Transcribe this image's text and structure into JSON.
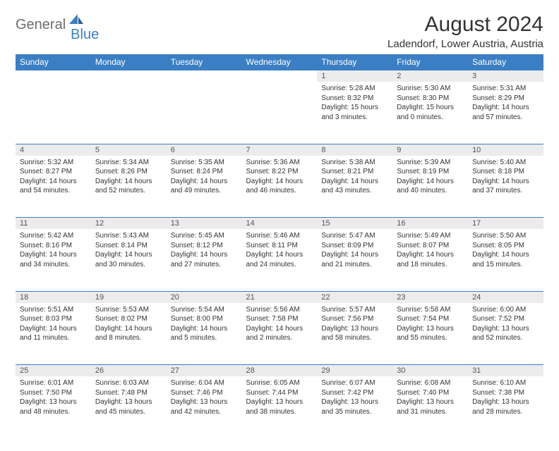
{
  "brand": {
    "part1": "General",
    "part2": "Blue"
  },
  "title": "August 2024",
  "location": "Ladendorf, Lower Austria, Austria",
  "colors": {
    "header_bg": "#3a7fc4",
    "header_text": "#ffffff",
    "daynum_bg": "#ececec",
    "border": "#3a7fc4",
    "text": "#333333",
    "logo_gray": "#6d6d6d",
    "logo_blue": "#3a7fc4"
  },
  "daysOfWeek": [
    "Sunday",
    "Monday",
    "Tuesday",
    "Wednesday",
    "Thursday",
    "Friday",
    "Saturday"
  ],
  "weeks": [
    [
      null,
      null,
      null,
      null,
      {
        "n": "1",
        "sr": "Sunrise: 5:28 AM",
        "ss": "Sunset: 8:32 PM",
        "dl": "Daylight: 15 hours and 3 minutes."
      },
      {
        "n": "2",
        "sr": "Sunrise: 5:30 AM",
        "ss": "Sunset: 8:30 PM",
        "dl": "Daylight: 15 hours and 0 minutes."
      },
      {
        "n": "3",
        "sr": "Sunrise: 5:31 AM",
        "ss": "Sunset: 8:29 PM",
        "dl": "Daylight: 14 hours and 57 minutes."
      }
    ],
    [
      {
        "n": "4",
        "sr": "Sunrise: 5:32 AM",
        "ss": "Sunset: 8:27 PM",
        "dl": "Daylight: 14 hours and 54 minutes."
      },
      {
        "n": "5",
        "sr": "Sunrise: 5:34 AM",
        "ss": "Sunset: 8:26 PM",
        "dl": "Daylight: 14 hours and 52 minutes."
      },
      {
        "n": "6",
        "sr": "Sunrise: 5:35 AM",
        "ss": "Sunset: 8:24 PM",
        "dl": "Daylight: 14 hours and 49 minutes."
      },
      {
        "n": "7",
        "sr": "Sunrise: 5:36 AM",
        "ss": "Sunset: 8:22 PM",
        "dl": "Daylight: 14 hours and 46 minutes."
      },
      {
        "n": "8",
        "sr": "Sunrise: 5:38 AM",
        "ss": "Sunset: 8:21 PM",
        "dl": "Daylight: 14 hours and 43 minutes."
      },
      {
        "n": "9",
        "sr": "Sunrise: 5:39 AM",
        "ss": "Sunset: 8:19 PM",
        "dl": "Daylight: 14 hours and 40 minutes."
      },
      {
        "n": "10",
        "sr": "Sunrise: 5:40 AM",
        "ss": "Sunset: 8:18 PM",
        "dl": "Daylight: 14 hours and 37 minutes."
      }
    ],
    [
      {
        "n": "11",
        "sr": "Sunrise: 5:42 AM",
        "ss": "Sunset: 8:16 PM",
        "dl": "Daylight: 14 hours and 34 minutes."
      },
      {
        "n": "12",
        "sr": "Sunrise: 5:43 AM",
        "ss": "Sunset: 8:14 PM",
        "dl": "Daylight: 14 hours and 30 minutes."
      },
      {
        "n": "13",
        "sr": "Sunrise: 5:45 AM",
        "ss": "Sunset: 8:12 PM",
        "dl": "Daylight: 14 hours and 27 minutes."
      },
      {
        "n": "14",
        "sr": "Sunrise: 5:46 AM",
        "ss": "Sunset: 8:11 PM",
        "dl": "Daylight: 14 hours and 24 minutes."
      },
      {
        "n": "15",
        "sr": "Sunrise: 5:47 AM",
        "ss": "Sunset: 8:09 PM",
        "dl": "Daylight: 14 hours and 21 minutes."
      },
      {
        "n": "16",
        "sr": "Sunrise: 5:49 AM",
        "ss": "Sunset: 8:07 PM",
        "dl": "Daylight: 14 hours and 18 minutes."
      },
      {
        "n": "17",
        "sr": "Sunrise: 5:50 AM",
        "ss": "Sunset: 8:05 PM",
        "dl": "Daylight: 14 hours and 15 minutes."
      }
    ],
    [
      {
        "n": "18",
        "sr": "Sunrise: 5:51 AM",
        "ss": "Sunset: 8:03 PM",
        "dl": "Daylight: 14 hours and 11 minutes."
      },
      {
        "n": "19",
        "sr": "Sunrise: 5:53 AM",
        "ss": "Sunset: 8:02 PM",
        "dl": "Daylight: 14 hours and 8 minutes."
      },
      {
        "n": "20",
        "sr": "Sunrise: 5:54 AM",
        "ss": "Sunset: 8:00 PM",
        "dl": "Daylight: 14 hours and 5 minutes."
      },
      {
        "n": "21",
        "sr": "Sunrise: 5:56 AM",
        "ss": "Sunset: 7:58 PM",
        "dl": "Daylight: 14 hours and 2 minutes."
      },
      {
        "n": "22",
        "sr": "Sunrise: 5:57 AM",
        "ss": "Sunset: 7:56 PM",
        "dl": "Daylight: 13 hours and 58 minutes."
      },
      {
        "n": "23",
        "sr": "Sunrise: 5:58 AM",
        "ss": "Sunset: 7:54 PM",
        "dl": "Daylight: 13 hours and 55 minutes."
      },
      {
        "n": "24",
        "sr": "Sunrise: 6:00 AM",
        "ss": "Sunset: 7:52 PM",
        "dl": "Daylight: 13 hours and 52 minutes."
      }
    ],
    [
      {
        "n": "25",
        "sr": "Sunrise: 6:01 AM",
        "ss": "Sunset: 7:50 PM",
        "dl": "Daylight: 13 hours and 48 minutes."
      },
      {
        "n": "26",
        "sr": "Sunrise: 6:03 AM",
        "ss": "Sunset: 7:48 PM",
        "dl": "Daylight: 13 hours and 45 minutes."
      },
      {
        "n": "27",
        "sr": "Sunrise: 6:04 AM",
        "ss": "Sunset: 7:46 PM",
        "dl": "Daylight: 13 hours and 42 minutes."
      },
      {
        "n": "28",
        "sr": "Sunrise: 6:05 AM",
        "ss": "Sunset: 7:44 PM",
        "dl": "Daylight: 13 hours and 38 minutes."
      },
      {
        "n": "29",
        "sr": "Sunrise: 6:07 AM",
        "ss": "Sunset: 7:42 PM",
        "dl": "Daylight: 13 hours and 35 minutes."
      },
      {
        "n": "30",
        "sr": "Sunrise: 6:08 AM",
        "ss": "Sunset: 7:40 PM",
        "dl": "Daylight: 13 hours and 31 minutes."
      },
      {
        "n": "31",
        "sr": "Sunrise: 6:10 AM",
        "ss": "Sunset: 7:38 PM",
        "dl": "Daylight: 13 hours and 28 minutes."
      }
    ]
  ]
}
